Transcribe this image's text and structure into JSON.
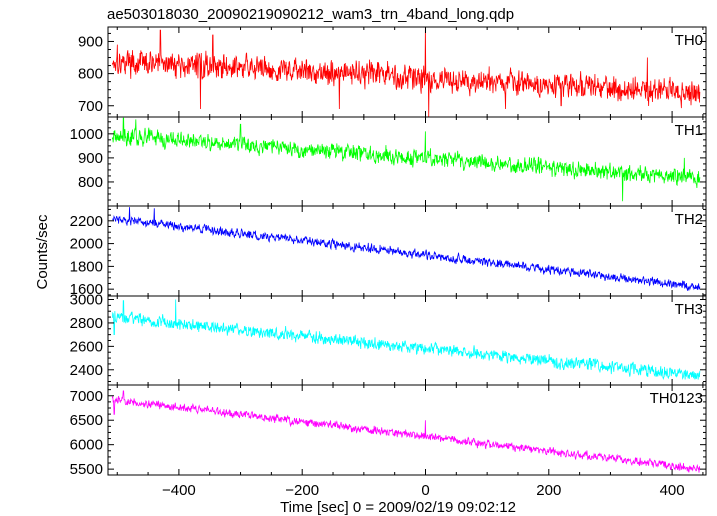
{
  "chart_data": {
    "type": "line",
    "title": "ae503018030_20090219090212_wam3_trn_4band_long.qdp",
    "xlabel": "Time [sec] 0 = 2009/02/19 09:02:12",
    "ylabel": "Counts/sec",
    "xlim": [
      -515,
      455
    ],
    "x_ticks": [
      -400,
      -200,
      0,
      200,
      400
    ],
    "x_tick_labels": [
      "−400",
      "−200",
      "0",
      "200",
      "400"
    ],
    "x_range": [
      -508,
      445
    ],
    "panels": [
      {
        "name": "TH0",
        "color": "#ff0000",
        "ylim": [
          665,
          945
        ],
        "y_ticks": [
          700,
          800,
          900
        ],
        "start_level": 840,
        "end_level": 740,
        "noise": 40,
        "features": [
          {
            "x": -500,
            "y": 890
          },
          {
            "x": -430,
            "y": 935
          },
          {
            "x": -365,
            "y": 690
          },
          {
            "x": -345,
            "y": 920
          },
          {
            "x": -140,
            "y": 690
          },
          {
            "x": 0,
            "y": 945
          },
          {
            "x": 5,
            "y": 665
          },
          {
            "x": 130,
            "y": 690
          },
          {
            "x": 220,
            "y": 700
          },
          {
            "x": 360,
            "y": 850
          }
        ]
      },
      {
        "name": "TH1",
        "color": "#00ff00",
        "ylim": [
          700,
          1070
        ],
        "y_ticks": [
          800,
          900,
          1000
        ],
        "start_level": 995,
        "end_level": 815,
        "noise": 35,
        "features": [
          {
            "x": -490,
            "y": 1065
          },
          {
            "x": -470,
            "y": 1060
          },
          {
            "x": -300,
            "y": 1040
          },
          {
            "x": 0,
            "y": 1010
          },
          {
            "x": 8,
            "y": 940
          },
          {
            "x": 320,
            "y": 720
          },
          {
            "x": 420,
            "y": 900
          }
        ]
      },
      {
        "name": "TH2",
        "color": "#0000ff",
        "ylim": [
          1540,
          2330
        ],
        "y_ticks": [
          1600,
          1800,
          2000,
          2200
        ],
        "start_level": 2220,
        "end_level": 1620,
        "noise": 40,
        "features": [
          {
            "x": -480,
            "y": 2320
          },
          {
            "x": -440,
            "y": 2310
          }
        ]
      },
      {
        "name": "TH3",
        "color": "#00ffff",
        "ylim": [
          2270,
          3030
        ],
        "y_ticks": [
          2400,
          2600,
          2800,
          3000
        ],
        "start_level": 2850,
        "end_level": 2350,
        "noise": 55,
        "features": [
          {
            "x": -505,
            "y": 2700
          },
          {
            "x": -490,
            "y": 2990
          },
          {
            "x": -405,
            "y": 3000
          }
        ]
      },
      {
        "name": "TH0123",
        "color": "#ff00ff",
        "ylim": [
          5380,
          7220
        ],
        "y_ticks": [
          5500,
          6000,
          6500,
          7000
        ],
        "start_level": 6930,
        "end_level": 5500,
        "noise": 85,
        "features": [
          {
            "x": -505,
            "y": 6620
          },
          {
            "x": -490,
            "y": 7100
          },
          {
            "x": 0,
            "y": 6500
          }
        ]
      }
    ]
  }
}
